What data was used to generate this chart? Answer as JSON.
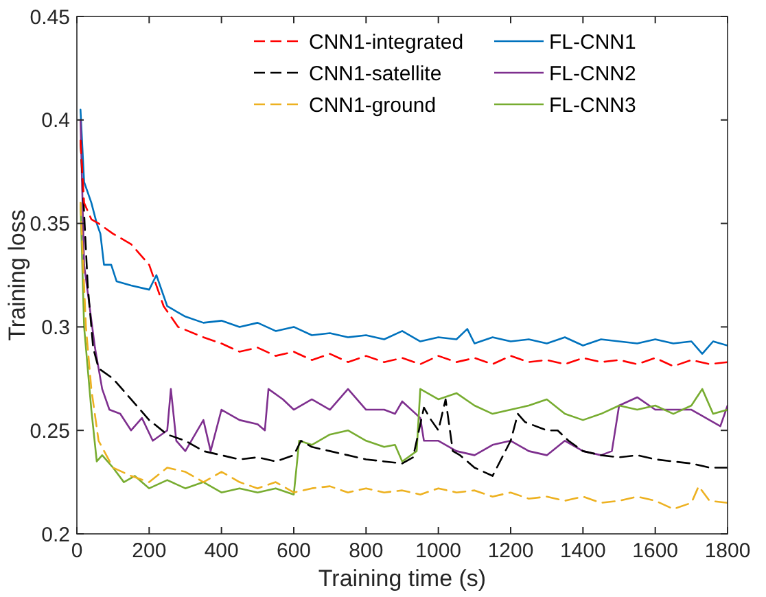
{
  "chart_data": {
    "type": "line",
    "xlabel": "Training time (s)",
    "ylabel": "Training loss",
    "xlim": [
      0,
      1800
    ],
    "ylim": [
      0.2,
      0.45
    ],
    "xticks": [
      0,
      200,
      400,
      600,
      800,
      1000,
      1200,
      1400,
      1600,
      1800
    ],
    "yticks": [
      0.2,
      0.25,
      0.3,
      0.35,
      0.4,
      0.45
    ],
    "grid": false,
    "legend": "top right",
    "series": [
      {
        "name": "CNN1-integrated",
        "color": "#ff0000",
        "line_style": "dashed",
        "x": [
          10,
          20,
          40,
          60,
          100,
          150,
          175,
          200,
          220,
          240,
          280,
          350,
          400,
          450,
          500,
          550,
          600,
          650,
          700,
          750,
          800,
          850,
          900,
          950,
          1000,
          1050,
          1100,
          1150,
          1200,
          1250,
          1300,
          1350,
          1400,
          1450,
          1500,
          1550,
          1600,
          1650,
          1700,
          1750,
          1800
        ],
        "values": [
          0.39,
          0.36,
          0.352,
          0.35,
          0.345,
          0.34,
          0.335,
          0.33,
          0.32,
          0.31,
          0.3,
          0.295,
          0.292,
          0.288,
          0.29,
          0.286,
          0.288,
          0.284,
          0.287,
          0.283,
          0.286,
          0.283,
          0.285,
          0.282,
          0.286,
          0.283,
          0.285,
          0.282,
          0.286,
          0.283,
          0.284,
          0.282,
          0.285,
          0.283,
          0.284,
          0.282,
          0.285,
          0.281,
          0.284,
          0.282,
          0.283
        ]
      },
      {
        "name": "CNN1-satellite",
        "color": "#000000",
        "line_style": "dashed",
        "x": [
          10,
          30,
          45,
          60,
          100,
          150,
          200,
          250,
          300,
          350,
          400,
          450,
          500,
          550,
          600,
          620,
          650,
          700,
          750,
          800,
          850,
          900,
          930,
          960,
          980,
          1000,
          1020,
          1040,
          1060,
          1100,
          1150,
          1200,
          1220,
          1240,
          1300,
          1330,
          1360,
          1400,
          1450,
          1500,
          1550,
          1600,
          1650,
          1700,
          1750,
          1800
        ],
        "values": [
          0.39,
          0.32,
          0.29,
          0.28,
          0.275,
          0.265,
          0.255,
          0.248,
          0.245,
          0.24,
          0.238,
          0.236,
          0.237,
          0.235,
          0.238,
          0.245,
          0.242,
          0.24,
          0.238,
          0.236,
          0.235,
          0.234,
          0.237,
          0.261,
          0.255,
          0.25,
          0.265,
          0.24,
          0.238,
          0.232,
          0.228,
          0.245,
          0.258,
          0.254,
          0.25,
          0.25,
          0.245,
          0.24,
          0.238,
          0.237,
          0.238,
          0.236,
          0.235,
          0.234,
          0.232,
          0.232
        ]
      },
      {
        "name": "CNN1-ground",
        "color": "#edb120",
        "line_style": "dashed",
        "x": [
          10,
          25,
          40,
          60,
          100,
          150,
          200,
          250,
          300,
          350,
          400,
          450,
          500,
          550,
          600,
          650,
          700,
          750,
          800,
          850,
          900,
          950,
          1000,
          1050,
          1100,
          1150,
          1200,
          1250,
          1300,
          1350,
          1400,
          1450,
          1500,
          1550,
          1600,
          1650,
          1700,
          1720,
          1750,
          1800
        ],
        "values": [
          0.36,
          0.3,
          0.27,
          0.245,
          0.232,
          0.228,
          0.225,
          0.232,
          0.23,
          0.225,
          0.23,
          0.225,
          0.222,
          0.225,
          0.22,
          0.222,
          0.223,
          0.22,
          0.222,
          0.22,
          0.221,
          0.219,
          0.222,
          0.22,
          0.221,
          0.218,
          0.22,
          0.217,
          0.218,
          0.216,
          0.218,
          0.215,
          0.216,
          0.218,
          0.216,
          0.212,
          0.215,
          0.223,
          0.216,
          0.215
        ]
      },
      {
        "name": "FL-CNN1",
        "color": "#0072bd",
        "line_style": "solid",
        "x": [
          10,
          20,
          40,
          55,
          65,
          75,
          95,
          110,
          150,
          200,
          220,
          250,
          300,
          350,
          400,
          450,
          500,
          550,
          600,
          650,
          700,
          750,
          800,
          850,
          900,
          950,
          1000,
          1050,
          1080,
          1100,
          1150,
          1200,
          1250,
          1300,
          1350,
          1400,
          1450,
          1500,
          1550,
          1600,
          1650,
          1700,
          1730,
          1760,
          1800
        ],
        "values": [
          0.405,
          0.37,
          0.36,
          0.35,
          0.345,
          0.33,
          0.33,
          0.322,
          0.32,
          0.318,
          0.325,
          0.31,
          0.305,
          0.302,
          0.303,
          0.3,
          0.302,
          0.298,
          0.3,
          0.296,
          0.297,
          0.295,
          0.296,
          0.294,
          0.298,
          0.293,
          0.295,
          0.294,
          0.299,
          0.292,
          0.295,
          0.293,
          0.294,
          0.292,
          0.295,
          0.291,
          0.294,
          0.293,
          0.292,
          0.294,
          0.292,
          0.293,
          0.287,
          0.293,
          0.291
        ]
      },
      {
        "name": "FL-CNN2",
        "color": "#7e2f8e",
        "line_style": "solid",
        "x": [
          10,
          20,
          50,
          70,
          90,
          120,
          150,
          180,
          210,
          250,
          260,
          275,
          300,
          350,
          370,
          400,
          450,
          500,
          520,
          530,
          570,
          600,
          650,
          700,
          750,
          800,
          850,
          880,
          900,
          950,
          960,
          1000,
          1050,
          1100,
          1150,
          1200,
          1250,
          1300,
          1350,
          1400,
          1450,
          1480,
          1500,
          1550,
          1600,
          1650,
          1700,
          1750,
          1780,
          1800
        ],
        "values": [
          0.4,
          0.33,
          0.29,
          0.27,
          0.26,
          0.258,
          0.25,
          0.256,
          0.245,
          0.25,
          0.27,
          0.245,
          0.24,
          0.255,
          0.24,
          0.26,
          0.255,
          0.253,
          0.25,
          0.27,
          0.265,
          0.26,
          0.265,
          0.26,
          0.27,
          0.26,
          0.26,
          0.258,
          0.264,
          0.256,
          0.245,
          0.245,
          0.24,
          0.238,
          0.243,
          0.245,
          0.24,
          0.238,
          0.245,
          0.24,
          0.238,
          0.24,
          0.262,
          0.266,
          0.26,
          0.26,
          0.26,
          0.255,
          0.252,
          0.262
        ]
      },
      {
        "name": "FL-CNN3",
        "color": "#77ac30",
        "line_style": "solid",
        "x": [
          10,
          20,
          40,
          55,
          70,
          100,
          130,
          160,
          200,
          250,
          300,
          350,
          400,
          450,
          500,
          550,
          600,
          615,
          650,
          700,
          750,
          800,
          850,
          880,
          900,
          940,
          950,
          1000,
          1050,
          1100,
          1150,
          1200,
          1250,
          1300,
          1350,
          1400,
          1450,
          1500,
          1550,
          1600,
          1650,
          1700,
          1730,
          1760,
          1800
        ],
        "values": [
          0.36,
          0.3,
          0.26,
          0.235,
          0.238,
          0.232,
          0.225,
          0.228,
          0.222,
          0.226,
          0.222,
          0.225,
          0.22,
          0.222,
          0.22,
          0.222,
          0.219,
          0.245,
          0.243,
          0.248,
          0.25,
          0.245,
          0.242,
          0.243,
          0.235,
          0.24,
          0.27,
          0.265,
          0.268,
          0.262,
          0.258,
          0.26,
          0.262,
          0.265,
          0.258,
          0.255,
          0.258,
          0.262,
          0.26,
          0.262,
          0.258,
          0.262,
          0.27,
          0.258,
          0.26
        ]
      }
    ]
  }
}
